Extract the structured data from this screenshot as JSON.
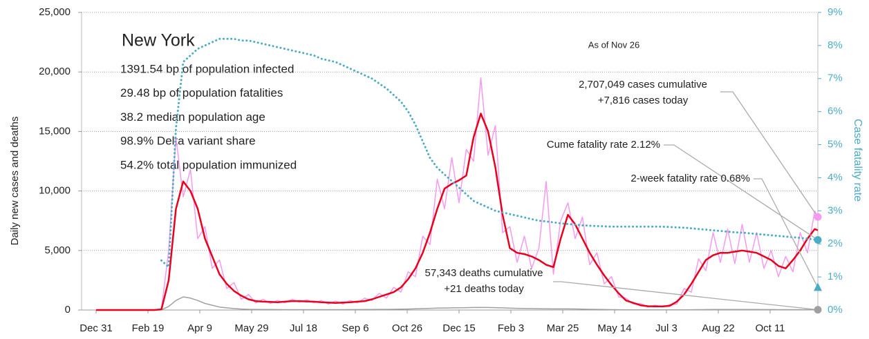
{
  "chart_data": {
    "type": "line",
    "info_title": "New York",
    "info_lines": [
      "1391.54 bp of population infected",
      "29.48 bp of population fatalities",
      "38.2 median population age",
      "98.9% Delta variant share",
      "54.2% total population immunized"
    ],
    "note": "As of Nov 26",
    "y_label": "Daily new cases and deaths",
    "y2_label": "Case fatality rate",
    "x": [
      0,
      7,
      14,
      21,
      28,
      35,
      42,
      49,
      56,
      63,
      70,
      77,
      84,
      91,
      98,
      105,
      112,
      119,
      126,
      133,
      140,
      147,
      154,
      161,
      168,
      175,
      182,
      189,
      196,
      203,
      210,
      217,
      224,
      231,
      238,
      245,
      252,
      259,
      266,
      273,
      280,
      287,
      294,
      301,
      308,
      315,
      322,
      329,
      336,
      343,
      350,
      357,
      364,
      371,
      378,
      385,
      392,
      399,
      406,
      413,
      420,
      427,
      434,
      441,
      448,
      455,
      462,
      469,
      476,
      483,
      490,
      497,
      504,
      511,
      518,
      525,
      532,
      539,
      546,
      553,
      560,
      567,
      574,
      581,
      588,
      595,
      602,
      609,
      616,
      623,
      630,
      637,
      644,
      651,
      658,
      665,
      672,
      679,
      686,
      693,
      696
    ],
    "xlim": [
      -14,
      696
    ],
    "xticks": [
      {
        "value": 0,
        "label": "Dec 31"
      },
      {
        "value": 50,
        "label": "Feb 19"
      },
      {
        "value": 100,
        "label": "Apr 9"
      },
      {
        "value": 150,
        "label": "May 29"
      },
      {
        "value": 200,
        "label": "Jul 18"
      },
      {
        "value": 250,
        "label": "Sep 6"
      },
      {
        "value": 300,
        "label": "Oct 26"
      },
      {
        "value": 350,
        "label": "Dec 15"
      },
      {
        "value": 400,
        "label": "Feb 3"
      },
      {
        "value": 450,
        "label": "Mar 25"
      },
      {
        "value": 500,
        "label": "May 14"
      },
      {
        "value": 550,
        "label": "Jul 3"
      },
      {
        "value": 600,
        "label": "Aug 22"
      },
      {
        "value": 650,
        "label": "Oct 11"
      }
    ],
    "ylim": [
      0,
      25000
    ],
    "yticks": [
      0,
      {
        "value": 5000,
        "label": "5,000"
      },
      {
        "value": 10000,
        "label": "10,000"
      },
      {
        "value": 15000,
        "label": "15,000"
      },
      {
        "value": 20000,
        "label": "20,000"
      },
      {
        "value": 25000,
        "label": "25,000"
      }
    ],
    "y2lim": [
      0,
      9
    ],
    "y2ticks": [
      {
        "value": 0,
        "label": "0%"
      },
      {
        "value": 1,
        "label": "1%"
      },
      {
        "value": 2,
        "label": "2%"
      },
      {
        "value": 3,
        "label": "3%"
      },
      {
        "value": 4,
        "label": "4%"
      },
      {
        "value": 5,
        "label": "5%"
      },
      {
        "value": 6,
        "label": "6%"
      },
      {
        "value": 7,
        "label": "7%"
      },
      {
        "value": 8,
        "label": "8%"
      },
      {
        "value": 9,
        "label": "9%"
      }
    ],
    "grid": true,
    "series": [
      {
        "color": "#f59af0",
        "width": 1.5,
        "values": [
          0,
          0,
          0,
          0,
          0,
          0,
          0,
          0,
          0,
          100,
          5000,
          14500,
          9500,
          11800,
          6000,
          7000,
          3500,
          4200,
          1800,
          2300,
          900,
          1300,
          600,
          900,
          550,
          800,
          600,
          900,
          650,
          850,
          600,
          800,
          500,
          750,
          500,
          800,
          600,
          1000,
          800,
          1400,
          1000,
          1900,
          1500,
          3200,
          2800,
          6200,
          5500,
          11000,
          8500,
          12800,
          9000,
          13500,
          12500,
          19500,
          13000,
          15500,
          6500,
          7000,
          4000,
          6200,
          3500,
          5200,
          10800,
          3000,
          7500,
          9000,
          6000,
          7800,
          3800,
          4800,
          2200,
          2800,
          1100,
          1000,
          500,
          550,
          250,
          400,
          250,
          450,
          500,
          1800,
          1500,
          4300,
          3300,
          6500,
          4000,
          6800,
          3900,
          7200,
          4000,
          6500,
          3500,
          5000,
          2800,
          4500,
          3200,
          6500,
          4800,
          8300,
          7816
        ]
      },
      {
        "color": "#a0a0a0",
        "width": 1.5,
        "values": [
          0,
          0,
          0,
          0,
          0,
          0,
          0,
          0,
          0,
          10,
          300,
          800,
          1100,
          1000,
          800,
          550,
          400,
          250,
          180,
          120,
          80,
          60,
          50,
          45,
          40,
          35,
          30,
          30,
          30,
          30,
          30,
          30,
          30,
          30,
          30,
          35,
          35,
          40,
          45,
          50,
          55,
          60,
          70,
          80,
          100,
          120,
          140,
          160,
          170,
          180,
          190,
          200,
          210,
          220,
          210,
          200,
          180,
          160,
          140,
          130,
          120,
          110,
          100,
          95,
          90,
          90,
          85,
          75,
          60,
          50,
          40,
          30,
          25,
          20,
          15,
          12,
          10,
          10,
          10,
          12,
          15,
          20,
          25,
          30,
          35,
          40,
          40,
          40,
          40,
          40,
          40,
          40,
          35,
          35,
          30,
          30,
          30,
          30,
          30,
          30,
          21
        ]
      },
      {
        "color": "#e8001c",
        "width": 2.5,
        "values": [
          0,
          0,
          0,
          0,
          0,
          0,
          0,
          0,
          0,
          50,
          2500,
          8500,
          10800,
          10000,
          8500,
          6000,
          4500,
          3000,
          2200,
          1600,
          1200,
          900,
          750,
          700,
          680,
          650,
          700,
          750,
          750,
          720,
          700,
          650,
          620,
          600,
          620,
          650,
          700,
          750,
          900,
          1100,
          1300,
          1500,
          1900,
          2600,
          3500,
          4800,
          6500,
          8500,
          10200,
          10600,
          10900,
          11300,
          14500,
          16500,
          15000,
          12000,
          8000,
          5200,
          4800,
          4700,
          4500,
          4200,
          3800,
          3600,
          6000,
          8000,
          7200,
          6000,
          4800,
          3800,
          2900,
          2100,
          1400,
          800,
          600,
          400,
          320,
          300,
          300,
          350,
          700,
          1300,
          2200,
          3200,
          4200,
          4600,
          4800,
          4800,
          4900,
          5000,
          4900,
          4800,
          4500,
          4200,
          3700,
          3500,
          4200,
          5000,
          6000,
          6800,
          6700
        ]
      },
      {
        "color": "#4bacc6",
        "width": 3,
        "dashed": true,
        "axis": "y2",
        "values": [
          null,
          null,
          null,
          null,
          null,
          null,
          null,
          null,
          null,
          1.5,
          1.3,
          5.5,
          7.5,
          7.7,
          7.9,
          8.0,
          8.1,
          8.2,
          8.2,
          8.2,
          8.15,
          8.15,
          8.1,
          8.05,
          8.0,
          7.95,
          7.9,
          7.85,
          7.8,
          7.75,
          7.7,
          7.6,
          7.55,
          7.5,
          7.4,
          7.3,
          7.2,
          7.1,
          7.0,
          6.85,
          6.7,
          6.5,
          6.3,
          6.0,
          5.6,
          5.1,
          4.6,
          4.3,
          4.1,
          3.9,
          3.7,
          3.5,
          3.3,
          3.2,
          3.1,
          3.0,
          2.95,
          2.9,
          2.85,
          2.8,
          2.75,
          2.7,
          2.68,
          2.65,
          2.62,
          2.6,
          2.58,
          2.56,
          2.55,
          2.54,
          2.53,
          2.52,
          2.52,
          2.52,
          2.52,
          2.52,
          2.52,
          2.52,
          2.52,
          2.51,
          2.5,
          2.49,
          2.47,
          2.45,
          2.43,
          2.41,
          2.39,
          2.37,
          2.35,
          2.34,
          2.32,
          2.3,
          2.28,
          2.26,
          2.24,
          2.22,
          2.2,
          2.18,
          2.16,
          2.13,
          2.12
        ]
      }
    ],
    "annotations": [
      {
        "lines": [
          "2,707,049 cases cumulative",
          "+7,816 cases today"
        ],
        "value": 7816,
        "color": "#f59af0",
        "marker": "circle"
      },
      {
        "lines": [
          "Cume fatality rate 2.12%"
        ],
        "value": 2.12,
        "axis": "y2",
        "color": "#4bacc6",
        "marker": "circle"
      },
      {
        "lines": [
          "2-week fatality rate 0.68%"
        ],
        "value": 0.68,
        "axis": "y2",
        "color": "#4bacc6",
        "marker": "triangle"
      },
      {
        "lines": [
          "57,343 deaths cumulative",
          "+21 deaths today"
        ],
        "value": 21,
        "color": "#a0a0a0",
        "marker": "circle"
      }
    ]
  }
}
